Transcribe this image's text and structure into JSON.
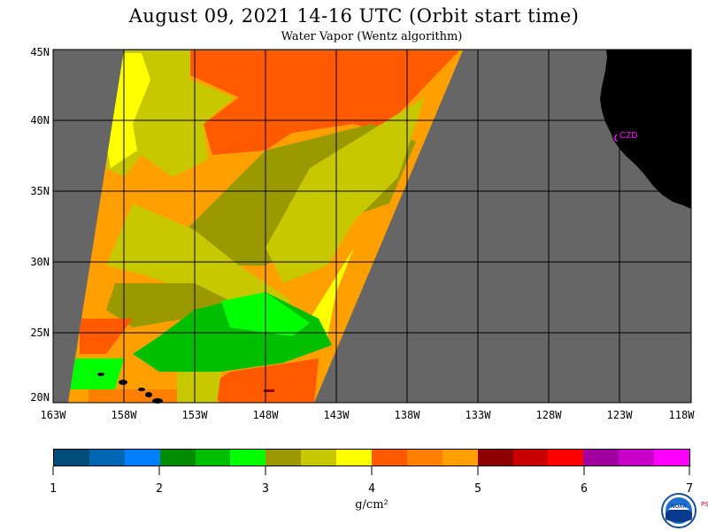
{
  "header": {
    "title": "August 09, 2021  14-16 UTC  (Orbit start time)",
    "subtitle": "Water Vapor (Wentz algorithm)"
  },
  "map": {
    "latitude_labels": [
      "45N",
      "40N",
      "35N",
      "30N",
      "25N",
      "20N"
    ],
    "longitude_labels": [
      "163W",
      "158W",
      "153W",
      "148W",
      "143W",
      "138W",
      "133W",
      "128W",
      "123W",
      "118W"
    ],
    "station_label": "CZD",
    "colors": {
      "no_data": "#666666",
      "land": "#000000",
      "grid": "#000000",
      "station": "#ff00ff"
    }
  },
  "colorbar": {
    "tick_labels": [
      "1",
      "2",
      "3",
      "4",
      "5",
      "6",
      "7"
    ],
    "unit": "g/cm²",
    "colors": [
      "#004d7a",
      "#0066b3",
      "#0080ff",
      "#008c00",
      "#00bf00",
      "#00ff00",
      "#9a9a00",
      "#c8c800",
      "#ffff00",
      "#ff5a00",
      "#ff8000",
      "#ffa000",
      "#8c0000",
      "#c80000",
      "#ff0000",
      "#a000a0",
      "#c800c8",
      "#ff00ff"
    ]
  },
  "logo": {
    "text": "NOAA",
    "side_text": "PSL"
  }
}
